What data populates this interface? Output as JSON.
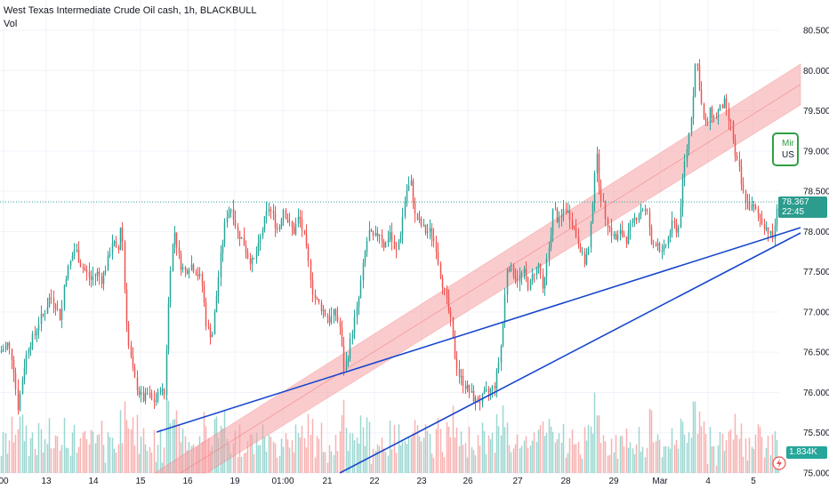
{
  "header": {
    "title": "West Texas Intermediate Crude Oil cash, 1h, BLACKBULL",
    "volume_label": "Vol"
  },
  "price_axis": {
    "labels": [
      "80.500",
      "80.000",
      "79.500",
      "79.000",
      "78.500",
      "78.000",
      "77.500",
      "77.000",
      "76.500",
      "76.000",
      "75.500",
      "75.000"
    ]
  },
  "time_axis": {
    "labels": [
      "00",
      "13",
      "14",
      "15",
      "16",
      "19",
      "01:00",
      "21",
      "22",
      "23",
      "26",
      "27",
      "28",
      "29",
      "Mar",
      "4",
      "5"
    ]
  },
  "last_price": {
    "value": "78.367",
    "countdown": "22:45"
  },
  "volume": {
    "last": "1.834K"
  },
  "news_snippet": {
    "line1": "Mir",
    "line2": "US c"
  },
  "colors": {
    "up": "#26a69a",
    "down": "#ef5350",
    "trendline": "#1848cc",
    "channel_fill": "#f7a1a6",
    "last_price_line": "#26a69a",
    "news_border": "#2ea043"
  },
  "icons": {
    "alert": "lightning-icon"
  },
  "chart_data": {
    "type": "candlestick",
    "title": "West Texas Intermediate Crude Oil cash, 1h, BLACKBULL",
    "xlabel": "",
    "ylabel": "",
    "ylim": [
      75.0,
      80.75
    ],
    "grid": true,
    "price_path": [
      [
        0,
        76.5
      ],
      [
        8,
        76.6
      ],
      [
        14,
        76.4
      ],
      [
        20,
        75.8
      ],
      [
        26,
        76.3
      ],
      [
        32,
        76.6
      ],
      [
        38,
        76.7
      ],
      [
        44,
        76.9
      ],
      [
        50,
        77.0
      ],
      [
        56,
        77.2
      ],
      [
        62,
        77.1
      ],
      [
        68,
        76.9
      ],
      [
        72,
        77.4
      ],
      [
        78,
        77.6
      ],
      [
        84,
        77.8
      ],
      [
        90,
        77.6
      ],
      [
        96,
        77.5
      ],
      [
        102,
        77.4
      ],
      [
        108,
        77.5
      ],
      [
        114,
        77.4
      ],
      [
        120,
        77.6
      ],
      [
        126,
        77.9
      ],
      [
        132,
        77.7
      ],
      [
        136,
        78.2
      ],
      [
        140,
        77.2
      ],
      [
        144,
        76.6
      ],
      [
        150,
        76.2
      ],
      [
        156,
        76.0
      ],
      [
        162,
        75.9
      ],
      [
        166,
        76.0
      ],
      [
        170,
        75.9
      ],
      [
        176,
        75.9
      ],
      [
        180,
        76.1
      ],
      [
        184,
        75.9
      ],
      [
        188,
        76.9
      ],
      [
        192,
        77.7
      ],
      [
        196,
        78.0
      ],
      [
        202,
        77.6
      ],
      [
        208,
        77.5
      ],
      [
        214,
        77.6
      ],
      [
        220,
        77.5
      ],
      [
        226,
        77.4
      ],
      [
        232,
        76.8
      ],
      [
        238,
        76.7
      ],
      [
        244,
        77.3
      ],
      [
        248,
        77.7
      ],
      [
        254,
        78.2
      ],
      [
        260,
        78.3
      ],
      [
        266,
        78.0
      ],
      [
        272,
        77.9
      ],
      [
        278,
        77.7
      ],
      [
        284,
        77.6
      ],
      [
        290,
        77.8
      ],
      [
        296,
        78.1
      ],
      [
        302,
        78.3
      ],
      [
        306,
        78.2
      ],
      [
        312,
        78.0
      ],
      [
        318,
        78.3
      ],
      [
        324,
        78.1
      ],
      [
        330,
        78.0
      ],
      [
        336,
        78.2
      ],
      [
        342,
        77.9
      ],
      [
        348,
        77.5
      ],
      [
        352,
        77.2
      ],
      [
        358,
        77.1
      ],
      [
        364,
        77.0
      ],
      [
        370,
        76.9
      ],
      [
        376,
        77.0
      ],
      [
        382,
        76.8
      ],
      [
        386,
        76.3
      ],
      [
        390,
        76.4
      ],
      [
        396,
        76.8
      ],
      [
        402,
        77.1
      ],
      [
        408,
        77.6
      ],
      [
        414,
        78.0
      ],
      [
        420,
        77.9
      ],
      [
        426,
        78.0
      ],
      [
        432,
        77.8
      ],
      [
        438,
        78.0
      ],
      [
        444,
        77.7
      ],
      [
        450,
        78.0
      ],
      [
        456,
        78.5
      ],
      [
        462,
        78.6
      ],
      [
        466,
        78.2
      ],
      [
        472,
        78.1
      ],
      [
        478,
        78.0
      ],
      [
        484,
        78.0
      ],
      [
        490,
        77.8
      ],
      [
        494,
        77.5
      ],
      [
        500,
        77.2
      ],
      [
        506,
        76.9
      ],
      [
        510,
        76.5
      ],
      [
        516,
        76.2
      ],
      [
        522,
        76.1
      ],
      [
        528,
        76.0
      ],
      [
        534,
        75.9
      ],
      [
        540,
        75.9
      ],
      [
        546,
        76.0
      ],
      [
        550,
        76.0
      ],
      [
        556,
        76.1
      ],
      [
        562,
        76.5
      ],
      [
        566,
        77.0
      ],
      [
        570,
        77.6
      ],
      [
        576,
        77.5
      ],
      [
        582,
        77.4
      ],
      [
        588,
        77.5
      ],
      [
        594,
        77.3
      ],
      [
        600,
        77.5
      ],
      [
        606,
        77.6
      ],
      [
        610,
        77.2
      ],
      [
        614,
        77.6
      ],
      [
        618,
        77.9
      ],
      [
        622,
        78.3
      ],
      [
        628,
        78.1
      ],
      [
        634,
        78.3
      ],
      [
        640,
        78.2
      ],
      [
        646,
        78.0
      ],
      [
        652,
        77.8
      ],
      [
        656,
        77.6
      ],
      [
        662,
        77.8
      ],
      [
        666,
        78.4
      ],
      [
        670,
        79.0
      ],
      [
        674,
        78.5
      ],
      [
        680,
        78.2
      ],
      [
        686,
        78.0
      ],
      [
        692,
        77.9
      ],
      [
        698,
        78.0
      ],
      [
        704,
        77.9
      ],
      [
        710,
        78.1
      ],
      [
        716,
        78.2
      ],
      [
        722,
        78.3
      ],
      [
        728,
        78.2
      ],
      [
        732,
        77.8
      ],
      [
        738,
        77.9
      ],
      [
        744,
        77.7
      ],
      [
        750,
        77.9
      ],
      [
        756,
        78.1
      ],
      [
        762,
        78.0
      ],
      [
        766,
        78.5
      ],
      [
        770,
        78.9
      ],
      [
        774,
        79.2
      ],
      [
        778,
        79.6
      ],
      [
        782,
        80.2
      ],
      [
        786,
        79.8
      ],
      [
        790,
        79.4
      ],
      [
        794,
        79.3
      ],
      [
        798,
        79.5
      ],
      [
        802,
        79.4
      ],
      [
        808,
        79.5
      ],
      [
        814,
        79.6
      ],
      [
        818,
        79.4
      ],
      [
        822,
        79.3
      ],
      [
        826,
        78.9
      ],
      [
        830,
        78.8
      ],
      [
        834,
        78.5
      ],
      [
        838,
        78.4
      ],
      [
        842,
        78.3
      ],
      [
        846,
        78.3
      ],
      [
        852,
        78.2
      ],
      [
        858,
        78.1
      ],
      [
        864,
        78.0
      ],
      [
        868,
        77.9
      ],
      [
        872,
        78.2
      ],
      [
        876,
        78.37
      ]
    ]
  }
}
